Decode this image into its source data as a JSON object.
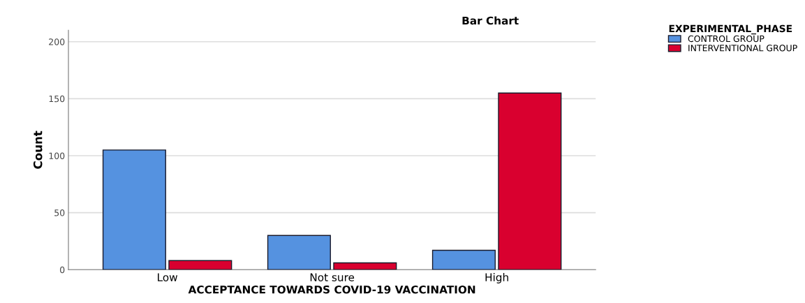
{
  "chart_data": {
    "type": "bar",
    "title": "Bar Chart",
    "xlabel": "ACCEPTANCE TOWARDS COVID-19 VACCINATION",
    "ylabel": "Count",
    "legend_title": "EXPERIMENTAL_PHASE",
    "categories": [
      "Low",
      "Not sure",
      "High"
    ],
    "series": [
      {
        "name": "CONTROL GROUP",
        "color": "#5592e0",
        "values": [
          105,
          30,
          17
        ]
      },
      {
        "name": "INTERVENTIONAL GROUP",
        "color": "#d9002f",
        "values": [
          8,
          6,
          155
        ]
      }
    ],
    "ylim": [
      0,
      210
    ],
    "yticks": [
      0,
      50,
      100,
      150,
      200
    ],
    "grid": "y",
    "legend": "top right"
  }
}
